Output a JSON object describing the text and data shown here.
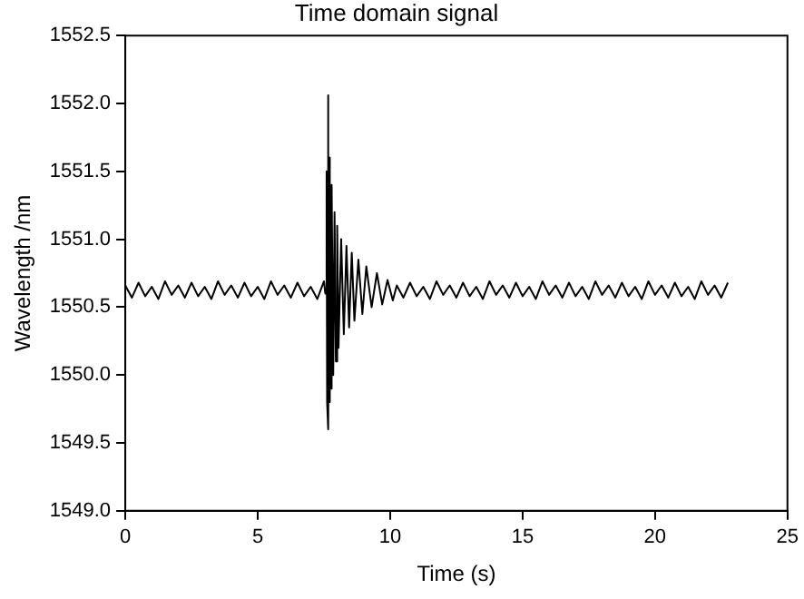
{
  "chart_data": {
    "type": "line",
    "title": "Time domain signal",
    "xlabel": "Time (s)",
    "ylabel": "Wavelength /nm",
    "xlim": [
      0,
      25
    ],
    "xticks": [
      0,
      5,
      10,
      15,
      20,
      25
    ],
    "ylim": [
      1549.0,
      1552.5
    ],
    "yticks": [
      {
        "value": 1549,
        "label": "1549.0"
      },
      {
        "value": 1549.5,
        "label": "1549.5"
      },
      {
        "value": 1550,
        "label": "1550.0"
      },
      {
        "value": 1550.5,
        "label": "1550.5"
      },
      {
        "value": 1551,
        "label": "1551.0"
      },
      {
        "value": 1551.5,
        "label": "1551.5"
      },
      {
        "value": 1552,
        "label": "1552.0"
      },
      {
        "value": 1552.5,
        "label": "1552.5"
      }
    ],
    "grid": false,
    "legend": false,
    "marker": "none",
    "line_style": "solid",
    "series": [
      {
        "color": "#000000",
        "x": [
          0,
          0.25,
          0.5,
          0.75,
          1,
          1.25,
          1.5,
          1.75,
          2,
          2.25,
          2.5,
          2.75,
          3,
          3.25,
          3.5,
          3.75,
          4,
          4.25,
          4.5,
          4.75,
          5,
          5.25,
          5.5,
          5.75,
          6,
          6.25,
          6.5,
          6.75,
          7,
          7.25,
          7.5,
          7.55,
          7.6,
          7.62,
          7.65,
          7.67,
          7.7,
          7.72,
          7.75,
          7.78,
          7.8,
          7.85,
          7.9,
          7.95,
          8,
          8.05,
          8.15,
          8.25,
          8.35,
          8.45,
          8.55,
          8.65,
          8.8,
          8.95,
          9.1,
          9.3,
          9.5,
          9.7,
          9.9,
          10.1,
          10.25,
          10.5,
          10.75,
          11,
          11.25,
          11.5,
          11.75,
          12,
          12.25,
          12.5,
          12.75,
          13,
          13.25,
          13.5,
          13.75,
          14,
          14.25,
          14.5,
          14.75,
          15,
          15.25,
          15.5,
          15.75,
          16,
          16.25,
          16.5,
          16.75,
          17,
          17.25,
          17.5,
          17.75,
          18,
          18.25,
          18.5,
          18.75,
          19,
          19.25,
          19.5,
          19.75,
          20,
          20.25,
          20.5,
          20.75,
          21,
          21.25,
          21.5,
          21.75,
          22,
          22.25,
          22.5,
          22.75
        ],
        "values": [
          1550.66,
          1550.57,
          1550.68,
          1550.58,
          1550.65,
          1550.56,
          1550.69,
          1550.59,
          1550.66,
          1550.57,
          1550.68,
          1550.58,
          1550.65,
          1550.56,
          1550.69,
          1550.59,
          1550.66,
          1550.57,
          1550.68,
          1550.58,
          1550.65,
          1550.56,
          1550.69,
          1550.59,
          1550.66,
          1550.57,
          1550.68,
          1550.58,
          1550.65,
          1550.56,
          1550.69,
          1550.6,
          1551.5,
          1549.8,
          1552.06,
          1549.6,
          1551.6,
          1549.8,
          1551.3,
          1549.9,
          1551.4,
          1550.0,
          1551.2,
          1550.1,
          1551.1,
          1550.2,
          1551.0,
          1550.3,
          1550.95,
          1550.35,
          1550.9,
          1550.4,
          1550.85,
          1550.45,
          1550.8,
          1550.5,
          1550.75,
          1550.52,
          1550.7,
          1550.55,
          1550.66,
          1550.57,
          1550.68,
          1550.58,
          1550.65,
          1550.56,
          1550.69,
          1550.59,
          1550.66,
          1550.57,
          1550.68,
          1550.58,
          1550.65,
          1550.56,
          1550.69,
          1550.59,
          1550.66,
          1550.57,
          1550.68,
          1550.58,
          1550.65,
          1550.56,
          1550.69,
          1550.59,
          1550.66,
          1550.57,
          1550.68,
          1550.58,
          1550.65,
          1550.56,
          1550.69,
          1550.59,
          1550.66,
          1550.57,
          1550.68,
          1550.58,
          1550.65,
          1550.56,
          1550.69,
          1550.59,
          1550.66,
          1550.57,
          1550.68,
          1550.58,
          1550.65,
          1550.56,
          1550.69,
          1550.59,
          1550.66,
          1550.57,
          1550.68
        ]
      }
    ]
  }
}
